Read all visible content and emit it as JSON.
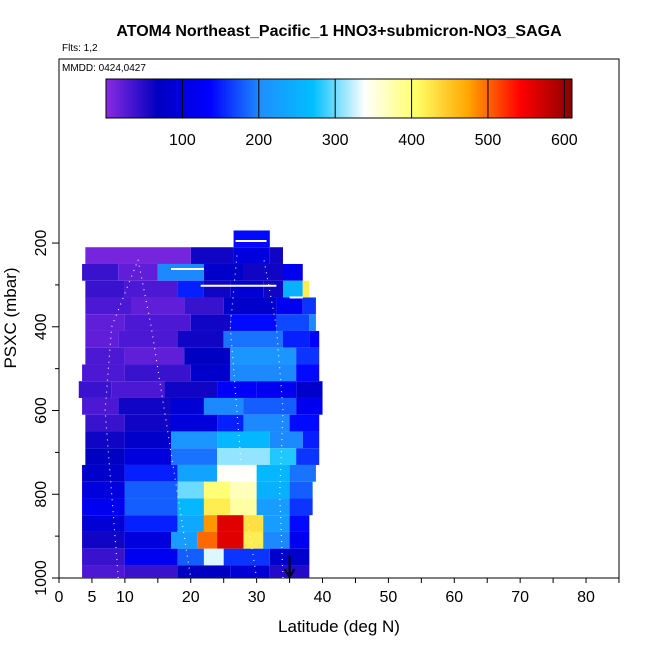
{
  "chart_data": {
    "type": "heatmap",
    "title": "ATOM4 Northeast_Pacific_1 HNO3+submicron-NO3_SAGA",
    "subtitle_flights": "Flts: 1,2",
    "subtitle_dates": "MMDD: 0424,0427",
    "xlabel": "Latitude (deg N)",
    "ylabel": "PSXC (mbar)",
    "xlim": [
      0,
      85
    ],
    "ylim": [
      1000,
      100
    ],
    "x_ticks": [
      0,
      5,
      10,
      20,
      30,
      40,
      50,
      60,
      70,
      80
    ],
    "y_ticks": [
      200,
      400,
      600,
      800,
      1000
    ],
    "colorbar": {
      "min": 0,
      "max": 610,
      "ticks": [
        100,
        200,
        300,
        400,
        500,
        600
      ],
      "colors": [
        "#8a2be2",
        "#0000c0",
        "#0000ff",
        "#1e90ff",
        "#00bfff",
        "#ffffff",
        "#ffff66",
        "#ffa500",
        "#ff0000",
        "#8b0000"
      ]
    },
    "marker_latitude": 35,
    "grid": [
      {
        "p": 190,
        "cells": [
          [
            26.5,
            32,
            140
          ]
        ]
      },
      {
        "p": 230,
        "cells": [
          [
            4,
            20,
            10
          ],
          [
            20,
            26.5,
            60
          ],
          [
            26.5,
            32,
            100
          ],
          [
            32,
            34,
            60
          ]
        ]
      },
      {
        "p": 270,
        "cells": [
          [
            3.5,
            9,
            40
          ],
          [
            9,
            15,
            20
          ],
          [
            15,
            22,
            200
          ],
          [
            22,
            28,
            80
          ],
          [
            28,
            34,
            60
          ],
          [
            34,
            37,
            120
          ]
        ]
      },
      {
        "p": 310,
        "cells": [
          [
            4,
            10,
            40
          ],
          [
            10,
            18,
            30
          ],
          [
            18,
            22,
            150
          ],
          [
            22,
            26,
            60
          ],
          [
            26,
            31,
            90
          ],
          [
            31,
            34,
            60
          ],
          [
            34,
            37,
            250
          ],
          [
            37,
            38,
            420
          ]
        ]
      },
      {
        "p": 350,
        "cells": [
          [
            4,
            11,
            30
          ],
          [
            11,
            19,
            20
          ],
          [
            19,
            25,
            40
          ],
          [
            25,
            33,
            80
          ],
          [
            33,
            37,
            120
          ],
          [
            37,
            39,
            160
          ]
        ]
      },
      {
        "p": 390,
        "cells": [
          [
            4,
            10,
            20
          ],
          [
            10,
            20,
            30
          ],
          [
            20,
            26,
            60
          ],
          [
            26,
            33,
            140
          ],
          [
            33,
            38,
            170
          ],
          [
            38,
            39,
            200
          ]
        ]
      },
      {
        "p": 430,
        "cells": [
          [
            4,
            9,
            20
          ],
          [
            9,
            18,
            30
          ],
          [
            18,
            25,
            60
          ],
          [
            25,
            34,
            190
          ],
          [
            34,
            38,
            150
          ],
          [
            38,
            39.5,
            130
          ]
        ]
      },
      {
        "p": 470,
        "cells": [
          [
            4,
            10,
            30
          ],
          [
            10,
            19,
            20
          ],
          [
            19,
            26,
            70
          ],
          [
            26,
            36,
            210
          ],
          [
            36,
            39.5,
            160
          ]
        ]
      },
      {
        "p": 510,
        "cells": [
          [
            3.5,
            10,
            30
          ],
          [
            10,
            20,
            40
          ],
          [
            20,
            26,
            80
          ],
          [
            26,
            36,
            200
          ],
          [
            36,
            39.5,
            140
          ]
        ]
      },
      {
        "p": 550,
        "cells": [
          [
            3,
            8,
            40
          ],
          [
            8,
            16,
            30
          ],
          [
            16,
            24,
            60
          ],
          [
            24,
            30,
            130
          ],
          [
            30,
            36,
            120
          ],
          [
            36,
            40,
            80
          ]
        ]
      },
      {
        "p": 590,
        "cells": [
          [
            3.5,
            9,
            30
          ],
          [
            9,
            17,
            60
          ],
          [
            17,
            22,
            90
          ],
          [
            22,
            28,
            200
          ],
          [
            28,
            36,
            180
          ],
          [
            36,
            40,
            120
          ]
        ]
      },
      {
        "p": 630,
        "cells": [
          [
            4,
            10,
            40
          ],
          [
            10,
            17,
            60
          ],
          [
            17,
            24,
            100
          ],
          [
            24,
            28,
            150
          ],
          [
            28,
            35,
            200
          ],
          [
            35,
            39.5,
            140
          ]
        ]
      },
      {
        "p": 670,
        "cells": [
          [
            4,
            10,
            60
          ],
          [
            10,
            17,
            80
          ],
          [
            17,
            24,
            210
          ],
          [
            24,
            32,
            260
          ],
          [
            32,
            37,
            200
          ],
          [
            37,
            39.5,
            150
          ]
        ]
      },
      {
        "p": 710,
        "cells": [
          [
            4,
            10,
            70
          ],
          [
            10,
            17,
            100
          ],
          [
            17,
            24,
            190
          ],
          [
            24,
            32,
            310
          ],
          [
            32,
            36,
            280
          ],
          [
            36,
            39.5,
            160
          ]
        ]
      },
      {
        "p": 750,
        "cells": [
          [
            3.5,
            10,
            80
          ],
          [
            10,
            18,
            150
          ],
          [
            18,
            24,
            230
          ],
          [
            24,
            30,
            340
          ],
          [
            30,
            35,
            260
          ],
          [
            35,
            39,
            190
          ]
        ]
      },
      {
        "p": 790,
        "cells": [
          [
            3.5,
            10,
            100
          ],
          [
            10,
            18,
            180
          ],
          [
            18,
            22,
            300
          ],
          [
            22,
            26,
            400
          ],
          [
            26,
            30,
            370
          ],
          [
            30,
            35,
            250
          ],
          [
            35,
            38.5,
            180
          ]
        ]
      },
      {
        "p": 830,
        "cells": [
          [
            3.5,
            10,
            120
          ],
          [
            10,
            18,
            180
          ],
          [
            18,
            22,
            260
          ],
          [
            22,
            26,
            420
          ],
          [
            26,
            30,
            380
          ],
          [
            30,
            35,
            220
          ],
          [
            35,
            38.5,
            160
          ]
        ]
      },
      {
        "p": 870,
        "cells": [
          [
            3.5,
            10,
            90
          ],
          [
            10,
            18,
            150
          ],
          [
            18,
            22,
            240
          ],
          [
            22,
            24,
            480
          ],
          [
            24,
            28,
            560
          ],
          [
            28,
            31,
            430
          ],
          [
            31,
            35,
            220
          ],
          [
            35,
            38,
            140
          ]
        ]
      },
      {
        "p": 910,
        "cells": [
          [
            3.5,
            10,
            60
          ],
          [
            10,
            17,
            100
          ],
          [
            17,
            21,
            220
          ],
          [
            21,
            24,
            500
          ],
          [
            24,
            28,
            560
          ],
          [
            28,
            31,
            420
          ],
          [
            31,
            35,
            200
          ],
          [
            35,
            38,
            120
          ]
        ]
      },
      {
        "p": 950,
        "cells": [
          [
            3.5,
            10,
            40
          ],
          [
            10,
            18,
            120
          ],
          [
            18,
            22,
            180
          ],
          [
            22,
            25,
            330
          ],
          [
            25,
            32,
            160
          ],
          [
            32,
            38,
            80
          ]
        ]
      },
      {
        "p": 990,
        "cells": [
          [
            3.5,
            10,
            30
          ],
          [
            10,
            18,
            40
          ],
          [
            18,
            26,
            70
          ],
          [
            26,
            32,
            90
          ],
          [
            32,
            38,
            50
          ]
        ]
      }
    ]
  }
}
